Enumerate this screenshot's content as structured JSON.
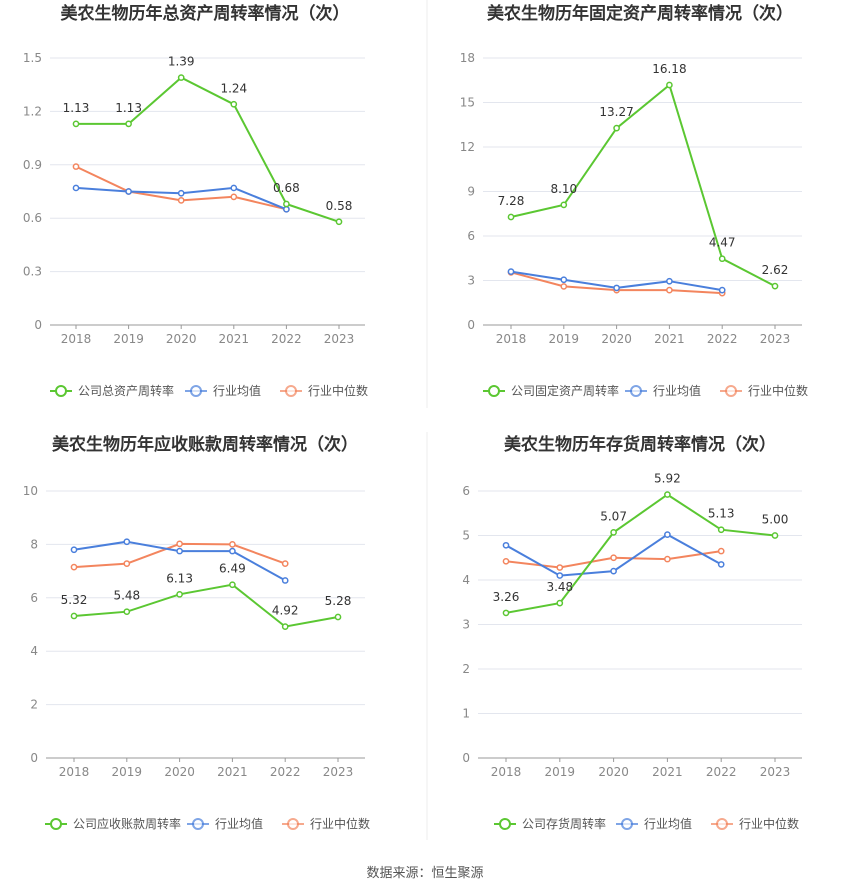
{
  "source_text": "数据来源：恒生聚源",
  "colors": {
    "company": "#5bc732",
    "avg": "#4a7fdc",
    "median": "#f3855e",
    "grid": "#e3e6ee",
    "axis": "#999999",
    "tick": "#888888",
    "label": "#333333",
    "title": "#333333"
  },
  "chart_data": [
    {
      "type": "line",
      "title": "美农生物历年总资产周转率情况（次）",
      "categories": [
        "2018",
        "2019",
        "2020",
        "2021",
        "2022",
        "2023"
      ],
      "ylim": [
        0,
        1.5
      ],
      "yticks": [
        "0",
        "0.3",
        "0.6",
        "0.9",
        "1.2",
        "1.5"
      ],
      "grid": true,
      "legend": "bottom",
      "series": [
        {
          "name": "公司总资产周转率",
          "role": "company",
          "values": [
            1.13,
            1.13,
            1.39,
            1.24,
            0.68,
            0.58
          ],
          "labels": [
            "1.13",
            "1.13",
            "1.39",
            "1.24",
            "0.68",
            "0.58"
          ]
        },
        {
          "name": "行业均值",
          "role": "avg",
          "values": [
            0.77,
            0.75,
            0.74,
            0.77,
            0.65,
            null
          ]
        },
        {
          "name": "行业中位数",
          "role": "median",
          "values": [
            0.89,
            0.75,
            0.7,
            0.72,
            0.65,
            null
          ]
        }
      ]
    },
    {
      "type": "line",
      "title": "美农生物历年固定资产周转率情况（次）",
      "categories": [
        "2018",
        "2019",
        "2020",
        "2021",
        "2022",
        "2023"
      ],
      "ylim": [
        0,
        18
      ],
      "yticks": [
        "0",
        "3",
        "6",
        "9",
        "12",
        "15",
        "18"
      ],
      "grid": true,
      "legend": "bottom",
      "series": [
        {
          "name": "公司固定资产周转率",
          "role": "company",
          "values": [
            7.28,
            8.1,
            13.27,
            16.18,
            4.47,
            2.62
          ],
          "labels": [
            "7.28",
            "8.10",
            "13.27",
            "16.18",
            "4.47",
            "2.62"
          ]
        },
        {
          "name": "行业均值",
          "role": "avg",
          "values": [
            3.6,
            3.05,
            2.5,
            2.95,
            2.35,
            null
          ]
        },
        {
          "name": "行业中位数",
          "role": "median",
          "values": [
            3.55,
            2.6,
            2.35,
            2.35,
            2.15,
            null
          ]
        }
      ]
    },
    {
      "type": "line",
      "title": "美农生物历年应收账款周转率情况（次）",
      "categories": [
        "2018",
        "2019",
        "2020",
        "2021",
        "2022",
        "2023"
      ],
      "ylim": [
        0,
        10
      ],
      "yticks": [
        "0",
        "2",
        "4",
        "6",
        "8",
        "10"
      ],
      "grid": true,
      "legend": "bottom",
      "series": [
        {
          "name": "公司应收账款周转率",
          "role": "company",
          "values": [
            5.32,
            5.48,
            6.13,
            6.49,
            4.92,
            5.28
          ],
          "labels": [
            "5.32",
            "5.48",
            "6.13",
            "6.49",
            "4.92",
            "5.28"
          ]
        },
        {
          "name": "行业均值",
          "role": "avg",
          "values": [
            7.8,
            8.1,
            7.75,
            7.75,
            6.65,
            null
          ]
        },
        {
          "name": "行业中位数",
          "role": "median",
          "values": [
            7.15,
            7.28,
            8.02,
            8.0,
            7.28,
            null
          ]
        }
      ]
    },
    {
      "type": "line",
      "title": "美农生物历年存货周转率情况（次）",
      "categories": [
        "2018",
        "2019",
        "2020",
        "2021",
        "2022",
        "2023"
      ],
      "ylim": [
        0,
        6
      ],
      "yticks": [
        "0",
        "1",
        "2",
        "3",
        "4",
        "5",
        "6"
      ],
      "grid": true,
      "legend": "bottom",
      "series": [
        {
          "name": "公司存货周转率",
          "role": "company",
          "values": [
            3.26,
            3.48,
            5.07,
            5.92,
            5.13,
            5.0
          ],
          "labels": [
            "3.26",
            "3.48",
            "5.07",
            "5.92",
            "5.13",
            "5.00"
          ]
        },
        {
          "name": "行业均值",
          "role": "avg",
          "values": [
            4.78,
            4.1,
            4.2,
            5.02,
            4.35,
            null
          ]
        },
        {
          "name": "行业中位数",
          "role": "median",
          "values": [
            4.42,
            4.28,
            4.5,
            4.47,
            4.65,
            null
          ]
        }
      ]
    }
  ]
}
